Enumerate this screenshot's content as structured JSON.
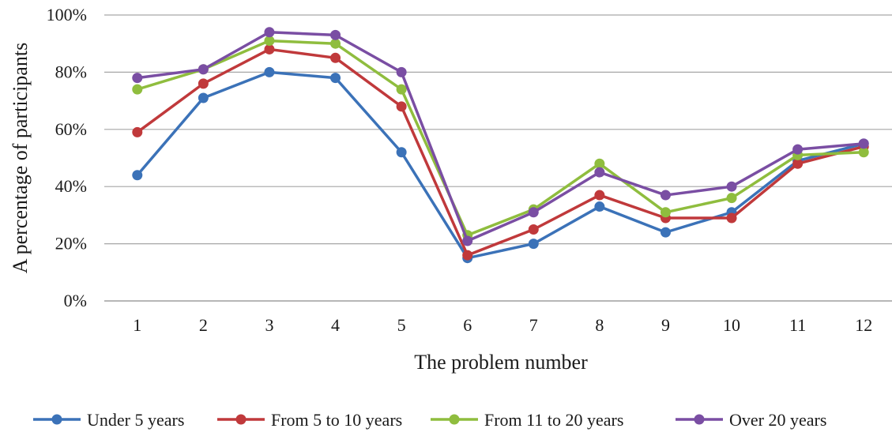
{
  "chart_data": {
    "type": "line",
    "title": "",
    "xlabel": "The problem number",
    "ylabel": "A percentage of participants",
    "categories": [
      "1",
      "2",
      "3",
      "4",
      "5",
      "6",
      "7",
      "8",
      "9",
      "10",
      "11",
      "12"
    ],
    "y_ticks": [
      "0%",
      "20%",
      "40%",
      "60%",
      "80%",
      "100%"
    ],
    "ylim": [
      0,
      100
    ],
    "grid": "horizontal",
    "legend_position": "bottom",
    "series": [
      {
        "name": "Under 5 years",
        "color": "#3b72b8",
        "values": [
          44,
          71,
          80,
          78,
          52,
          15,
          20,
          33,
          24,
          31,
          49,
          55
        ]
      },
      {
        "name": "From 5 to 10 years",
        "color": "#c0393b",
        "values": [
          59,
          76,
          88,
          85,
          68,
          16,
          25,
          37,
          29,
          29,
          48,
          54
        ]
      },
      {
        "name": "From 11 to 20 years",
        "color": "#8fbd3e",
        "values": [
          74,
          81,
          91,
          90,
          74,
          23,
          32,
          48,
          31,
          36,
          51,
          52
        ]
      },
      {
        "name": "Over 20 years",
        "color": "#7a4ea3",
        "values": [
          78,
          81,
          94,
          93,
          80,
          21,
          31,
          45,
          37,
          40,
          53,
          55
        ]
      }
    ]
  }
}
